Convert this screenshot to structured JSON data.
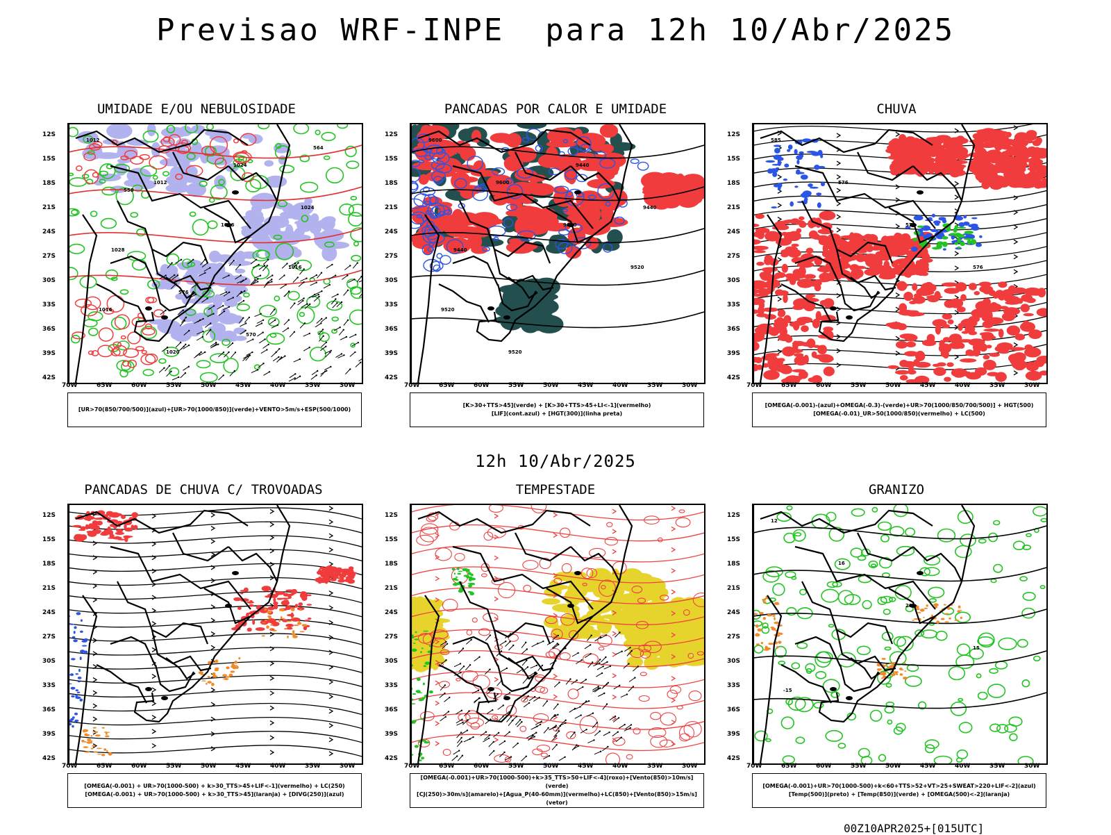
{
  "title": "Previsao WRF-INPE  para 12h 10/Abr/2025",
  "subtitle": "12h 10/Abr/2025",
  "footer": "00Z10APR2025+[015UTC]",
  "lat_labels": [
    "12S",
    "15S",
    "18S",
    "21S",
    "24S",
    "27S",
    "30S",
    "33S",
    "36S",
    "39S",
    "42S"
  ],
  "lon_labels": [
    "70W",
    "65W",
    "60W",
    "55W",
    "50W",
    "45W",
    "40W",
    "35W",
    "30W"
  ],
  "colors": {
    "red": "#f03c3c",
    "green": "#21c421",
    "blue": "#2a55e6",
    "lavender": "#b2b2ee",
    "darkgreen": "#244f4f",
    "yellow": "#e6d42c",
    "orange": "#f08a28",
    "black": "#000000"
  },
  "panels": [
    {
      "title": "UMIDADE E/OU NEBULOSIDADE",
      "legend": [
        "[UR>70(850/700/500)](azul)+[UR>70(1000/850)](verde)+VENTO>5m/s+ESP(500/1000)"
      ],
      "contour_labels": [
        "1012",
        "1012",
        "1016",
        "1016",
        "1016",
        "1020",
        "1024",
        "1024",
        "1028",
        "576",
        "570",
        "564",
        "558"
      ]
    },
    {
      "title": "PANCADAS POR CALOR E UMIDADE",
      "legend": [
        "[K>30+TTS>45](verde) + [K>30+TTS>45+LI<-1](vermelho)",
        "[LIF](cont.azul) + [HGT(300)](linha preta)"
      ],
      "contour_labels": [
        "9600",
        "9600",
        "9600",
        "9520",
        "9520",
        "9520",
        "9440",
        "9440",
        "9440"
      ]
    },
    {
      "title": "CHUVA",
      "legend": [
        "[OMEGA(-0.001)-(azul)+OMEGA(-0.3)-(verde)+UR>70(1000/850/700/500)] + HGT(500)",
        "[OMEGA(-0.01)_UR>50(1000/850)(vermelho) + LC(500)"
      ],
      "contour_labels": [
        "585",
        "576",
        "576",
        "576"
      ]
    },
    {
      "title": "PANCADAS DE CHUVA C/ TROVOADAS",
      "legend": [
        "[OMEGA(-0.001) + UR>70(1000-500) + k>30_TTS>45+LIF<-1](vermelho) + LC(250)",
        "[OMEGA(-0.001) + UR>70(1000-500) + k>30_TTS>45](laranja) + [DIVG(250)](azul)"
      ],
      "contour_labels": []
    },
    {
      "title": "TEMPESTADE",
      "legend": [
        "[OMEGA(-0.001)+UR>70(1000-500)+k>35_TTS>50+LIF<-4](roxo)+[Vento(850)>10m/s](verde)",
        "[CJ(250)>30m/s](amarelo)+[Agua_P(40-60mm)](vermelho)+LC(850)+[Vento(850)>15m/s](vetor)"
      ],
      "contour_labels": []
    },
    {
      "title": "GRANIZO",
      "legend": [
        "[OMEGA(-0.001)+UR>70(1000-500)+k<60+TTS>52+VT>25+SWEAT>220+LIF<-2](azul)",
        "[Temp(500)](preto) + [Temp(850)](verde) + [OMEGA(500)<-2](laranja)"
      ],
      "contour_labels": [
        "12",
        "16",
        "20",
        "15",
        "-15"
      ]
    }
  ]
}
